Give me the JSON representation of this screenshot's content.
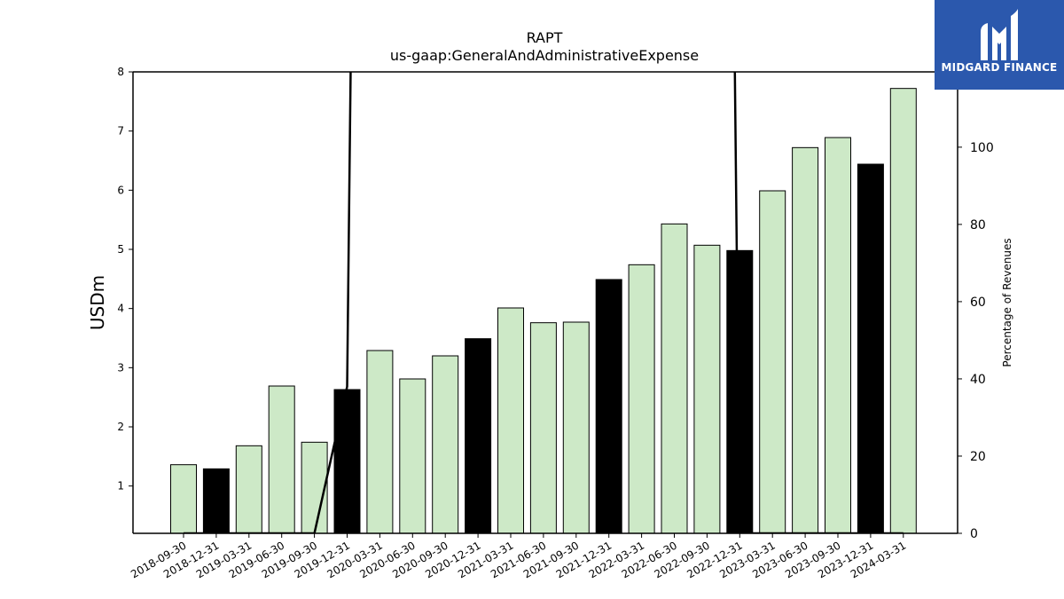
{
  "chart_data": {
    "type": "bar",
    "title": "RAPT",
    "subtitle": "us-gaap:GeneralAndAdministrativeExpense",
    "ylabel": "USDm",
    "y2label": "Percentage of Revenues",
    "ylim": [
      0.2,
      8
    ],
    "y2lim": [
      0,
      119.5
    ],
    "yticks": [
      1,
      2,
      3,
      4,
      5,
      6,
      7,
      8
    ],
    "y2ticks": [
      0,
      20,
      40,
      60,
      80,
      100
    ],
    "categories": [
      "2018-09-30",
      "2018-12-31",
      "2019-03-31",
      "2019-06-30",
      "2019-09-30",
      "2019-12-31",
      "2020-03-31",
      "2020-06-30",
      "2020-09-30",
      "2020-12-31",
      "2021-03-31",
      "2021-06-30",
      "2021-09-30",
      "2021-12-31",
      "2022-03-31",
      "2022-06-30",
      "2022-09-30",
      "2022-12-31",
      "2023-03-31",
      "2023-06-30",
      "2023-09-30",
      "2023-12-31",
      "2024-03-31"
    ],
    "values": [
      1.36,
      1.29,
      1.68,
      2.69,
      1.74,
      2.63,
      3.29,
      2.81,
      3.2,
      3.49,
      4.01,
      3.76,
      3.77,
      4.49,
      4.74,
      5.43,
      5.07,
      4.98,
      5.99,
      6.72,
      6.89,
      6.44,
      7.72
    ],
    "annual": [
      false,
      true,
      false,
      false,
      false,
      true,
      false,
      false,
      false,
      true,
      false,
      false,
      false,
      true,
      false,
      false,
      false,
      true,
      false,
      false,
      false,
      true,
      false
    ],
    "pct_of_revenues": [
      0,
      0,
      0,
      0,
      0,
      38,
      800,
      null,
      null,
      null,
      null,
      null,
      null,
      null,
      null,
      null,
      800,
      0,
      0,
      0,
      0,
      0,
      0
    ],
    "colors": {
      "quarter": "#cde9c7",
      "annual": "#000000",
      "line": "#000000"
    },
    "grid": false
  },
  "logo": {
    "text": "MIDGARD FINANCE",
    "color": "#2b58ad"
  }
}
